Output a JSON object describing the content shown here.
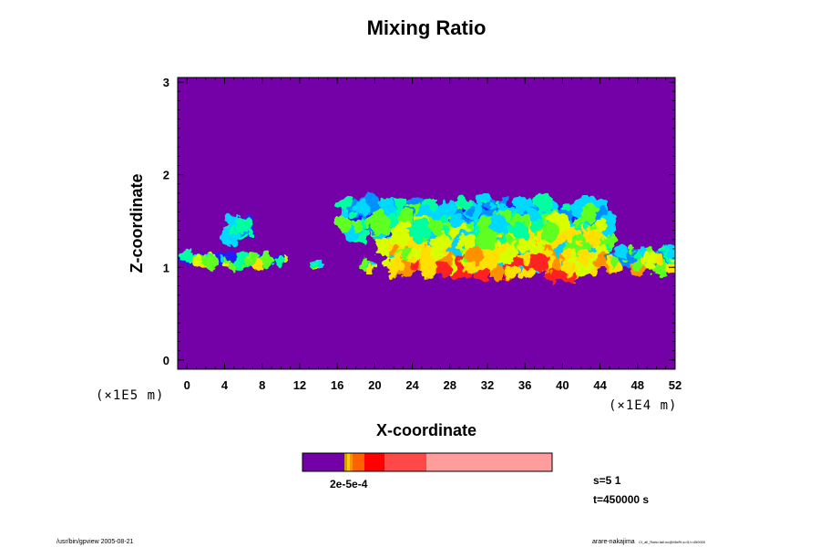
{
  "chart_data": {
    "type": "heatmap",
    "title": "Mixing Ratio",
    "xlabel": "X-coordinate",
    "ylabel": "Z-coordinate",
    "x_scale": "(×1E4 m)",
    "y_scale": "(×1E5 m)",
    "xlim": [
      -1,
      52
    ],
    "ylim": [
      -0.1,
      3.05
    ],
    "x_ticks": [
      "0",
      "4",
      "8",
      "12",
      "16",
      "20",
      "24",
      "28",
      "32",
      "36",
      "40",
      "44",
      "48",
      "52"
    ],
    "x_tick_values": [
      0,
      4,
      8,
      12,
      16,
      20,
      24,
      28,
      32,
      36,
      40,
      44,
      48,
      52
    ],
    "y_ticks": [
      "0",
      "1",
      "2",
      "3"
    ],
    "y_tick_values": [
      0,
      1,
      2,
      3
    ],
    "background_color": "#7400a8",
    "regions": [
      {
        "name": "left-low-layer",
        "x": [
          -1,
          10.8
        ],
        "z": [
          1.0,
          1.16
        ],
        "level": 0.5
      },
      {
        "name": "left-upper-patch",
        "x": [
          4.2,
          7.3
        ],
        "z": [
          1.3,
          1.53
        ],
        "level": 0.25
      },
      {
        "name": "small-blob-a",
        "x": [
          13.4,
          14.2
        ],
        "z": [
          1.01,
          1.05
        ],
        "level": 0.45
      },
      {
        "name": "small-blob-b",
        "x": [
          18.9,
          19.8
        ],
        "z": [
          0.99,
          1.06
        ],
        "level": 0.5
      },
      {
        "name": "main-cloud-upper",
        "x": [
          16.3,
          45.3
        ],
        "z": [
          1.3,
          1.7
        ],
        "level": 0.35
      },
      {
        "name": "main-cloud-core",
        "x": [
          20.5,
          45
        ],
        "z": [
          0.92,
          1.5
        ],
        "level": 0.7
      },
      {
        "name": "right-low-layer",
        "x": [
          44.6,
          52
        ],
        "z": [
          0.98,
          1.2
        ],
        "level": 0.55
      }
    ],
    "colorbar": {
      "label": "2e-5e-4",
      "colors": [
        "#7400a8",
        "#d0a000",
        "#ff8000",
        "#ff3030",
        "#ff6060",
        "#ff9898"
      ]
    }
  },
  "info": {
    "s_label": "s=5 1",
    "t_label": "t=450000 s"
  },
  "footer": {
    "left": "/usr/bin/gpview 2005-08-21",
    "right_main": "arare-nakajima",
    "right_small": "Cl_all_Ratio.tail.nc@MixRt,s=5,t=450000"
  }
}
